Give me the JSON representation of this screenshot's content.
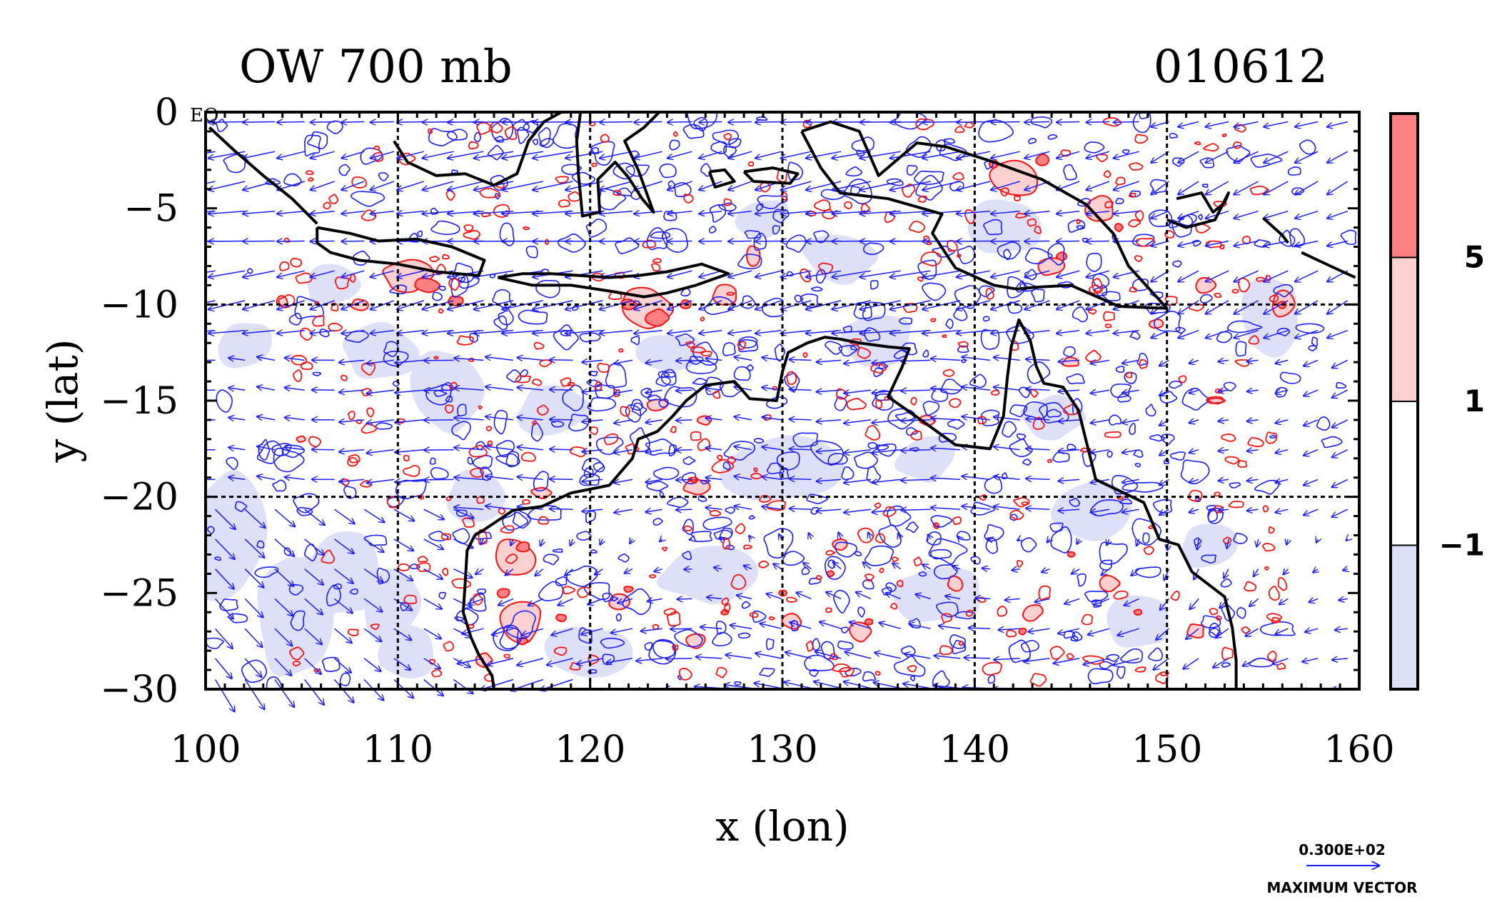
{
  "chart_data": {
    "type": "heatmap",
    "title_left": "OW 700 mb",
    "title_right": "010612",
    "xlabel": "x (lon)",
    "ylabel": "y (lat)",
    "corner_label": "EQ",
    "xlim": [
      100,
      160
    ],
    "ylim": [
      -30,
      0
    ],
    "x_ticks": [
      100,
      110,
      120,
      130,
      140,
      150,
      160
    ],
    "y_ticks": [
      0,
      -5,
      -10,
      -15,
      -20,
      -25,
      -30
    ],
    "x_tick_labels": [
      "100",
      "110",
      "120",
      "130",
      "140",
      "150",
      "160"
    ],
    "y_tick_labels": [
      "0",
      "−5",
      "−10",
      "−15",
      "−20",
      "−25",
      "−30"
    ],
    "grid_lon": [
      110,
      120,
      130,
      140,
      150
    ],
    "grid_lat": [
      -10,
      -20
    ],
    "grid": true,
    "colorbar": {
      "levels_labels": [
        "5",
        "1",
        "−1"
      ],
      "bands": [
        {
          "range": "> 5",
          "color": "#ff8080"
        },
        {
          "range": "1 to 5",
          "color": "#ffd0d0"
        },
        {
          "range": "-1 to 1",
          "color": "#ffffff"
        },
        {
          "range": "< -1",
          "color": "#dde0f8"
        }
      ]
    },
    "vector_key": {
      "value_label": "0.300E+02",
      "caption": "MAXIMUM VECTOR"
    },
    "colors": {
      "positive_contour": "#ff1010",
      "negative_contour": "#1a1aff",
      "vectors": "#1a1aff",
      "coastline": "#000000",
      "fill_strong": "#ff8080",
      "fill_weak": "#ffd0d0",
      "fill_negative": "#dde0f8"
    },
    "coastlines": [
      [
        [
          100.2,
          -0.8
        ],
        [
          101.5,
          -2.0
        ],
        [
          103.0,
          -3.3
        ],
        [
          104.5,
          -4.5
        ],
        [
          105.8,
          -5.8
        ]
      ],
      [
        [
          105.8,
          -6.0
        ],
        [
          107.5,
          -6.3
        ],
        [
          109.0,
          -6.7
        ],
        [
          111.0,
          -6.6
        ],
        [
          112.8,
          -7.0
        ],
        [
          114.5,
          -7.7
        ],
        [
          114.2,
          -8.5
        ],
        [
          112.0,
          -8.3
        ],
        [
          110.0,
          -7.9
        ],
        [
          108.0,
          -7.7
        ],
        [
          106.5,
          -7.3
        ],
        [
          105.8,
          -6.8
        ],
        [
          105.8,
          -6.0
        ]
      ],
      [
        [
          115.2,
          -8.6
        ],
        [
          116.5,
          -8.4
        ],
        [
          118.0,
          -8.4
        ],
        [
          119.5,
          -8.5
        ],
        [
          121.0,
          -8.6
        ],
        [
          122.5,
          -8.5
        ],
        [
          124.0,
          -8.3
        ],
        [
          125.8,
          -7.9
        ],
        [
          127.2,
          -8.4
        ],
        [
          125.5,
          -9.0
        ],
        [
          124.0,
          -9.4
        ],
        [
          122.8,
          -9.6
        ],
        [
          121.0,
          -9.3
        ],
        [
          119.0,
          -9.0
        ],
        [
          117.0,
          -9.0
        ],
        [
          115.2,
          -8.6
        ]
      ],
      [
        [
          109.8,
          -1.5
        ],
        [
          110.5,
          -2.6
        ],
        [
          112.0,
          -3.3
        ],
        [
          113.5,
          -3.2
        ],
        [
          115.0,
          -3.8
        ],
        [
          116.2,
          -3.2
        ],
        [
          116.8,
          -1.5
        ],
        [
          117.6,
          -0.5
        ],
        [
          118.5,
          0.0
        ]
      ],
      [
        [
          119.5,
          0.0
        ],
        [
          119.3,
          -1.5
        ],
        [
          119.4,
          -3.3
        ],
        [
          119.6,
          -5.4
        ],
        [
          120.5,
          -5.2
        ],
        [
          120.4,
          -3.5
        ],
        [
          121.3,
          -2.6
        ],
        [
          122.0,
          -3.4
        ],
        [
          122.7,
          -4.5
        ],
        [
          123.3,
          -5.2
        ],
        [
          122.5,
          -3.0
        ],
        [
          121.8,
          -1.5
        ],
        [
          122.8,
          -0.8
        ],
        [
          123.6,
          0.0
        ]
      ],
      [
        [
          126.2,
          -3.1
        ],
        [
          127.0,
          -3.0
        ],
        [
          127.5,
          -3.6
        ],
        [
          126.5,
          -3.9
        ],
        [
          126.2,
          -3.1
        ]
      ],
      [
        [
          128.0,
          -3.1
        ],
        [
          129.5,
          -2.9
        ],
        [
          130.8,
          -3.2
        ],
        [
          130.4,
          -3.7
        ],
        [
          128.5,
          -3.6
        ],
        [
          128.0,
          -3.1
        ]
      ],
      [
        [
          131.0,
          -1.0
        ],
        [
          132.5,
          -0.5
        ],
        [
          134.0,
          -1.0
        ],
        [
          135.0,
          -3.3
        ],
        [
          137.0,
          -1.6
        ],
        [
          138.5,
          -1.8
        ],
        [
          141.0,
          -2.6
        ],
        [
          143.5,
          -3.5
        ],
        [
          145.8,
          -4.8
        ],
        [
          147.2,
          -6.3
        ],
        [
          148.0,
          -8.0
        ],
        [
          150.0,
          -10.2
        ],
        [
          147.5,
          -10.1
        ],
        [
          145.0,
          -9.0
        ],
        [
          143.2,
          -9.1
        ],
        [
          142.2,
          -9.2
        ],
        [
          141.0,
          -9.0
        ],
        [
          139.0,
          -8.1
        ],
        [
          137.8,
          -6.3
        ],
        [
          138.3,
          -5.3
        ],
        [
          135.5,
          -4.5
        ],
        [
          133.0,
          -4.2
        ],
        [
          132.0,
          -2.9
        ],
        [
          131.0,
          -1.0
        ]
      ],
      [
        [
          150.5,
          -4.5
        ],
        [
          151.8,
          -4.2
        ],
        [
          152.4,
          -5.2
        ],
        [
          153.0,
          -4.7
        ],
        [
          153.2,
          -4.2
        ],
        [
          152.5,
          -5.6
        ],
        [
          151.0,
          -6.0
        ],
        [
          150.0,
          -5.6
        ]
      ],
      [
        [
          155.0,
          -5.5
        ],
        [
          156.0,
          -6.4
        ],
        [
          156.3,
          -6.8
        ]
      ],
      [
        [
          157.0,
          -7.3
        ],
        [
          158.5,
          -8.0
        ],
        [
          159.8,
          -8.6
        ]
      ],
      [
        [
          114.0,
          -22.0
        ],
        [
          114.5,
          -21.7
        ],
        [
          116.0,
          -20.7
        ],
        [
          117.5,
          -20.5
        ],
        [
          119.0,
          -19.8
        ],
        [
          121.0,
          -19.4
        ],
        [
          122.2,
          -18.0
        ],
        [
          122.5,
          -17.0
        ],
        [
          123.5,
          -16.6
        ],
        [
          124.3,
          -15.8
        ],
        [
          125.0,
          -15.0
        ],
        [
          126.0,
          -14.2
        ],
        [
          127.5,
          -14.0
        ],
        [
          128.3,
          -14.9
        ],
        [
          129.7,
          -15.0
        ],
        [
          130.0,
          -13.5
        ],
        [
          130.3,
          -12.5
        ],
        [
          131.3,
          -12.0
        ],
        [
          132.2,
          -11.7
        ],
        [
          133.0,
          -11.8
        ],
        [
          134.0,
          -12.0
        ],
        [
          135.5,
          -12.2
        ],
        [
          136.6,
          -12.3
        ],
        [
          136.2,
          -13.3
        ],
        [
          135.5,
          -14.8
        ],
        [
          137.2,
          -16.0
        ],
        [
          139.0,
          -17.3
        ],
        [
          140.8,
          -17.5
        ],
        [
          141.5,
          -15.8
        ],
        [
          141.7,
          -13.8
        ],
        [
          141.9,
          -12.2
        ],
        [
          142.3,
          -10.8
        ],
        [
          142.9,
          -11.9
        ],
        [
          143.2,
          -13.2
        ],
        [
          143.6,
          -14.1
        ],
        [
          144.6,
          -14.3
        ],
        [
          145.4,
          -15.5
        ],
        [
          145.9,
          -17.5
        ],
        [
          146.3,
          -19.1
        ],
        [
          148.8,
          -20.3
        ],
        [
          149.6,
          -22.2
        ],
        [
          150.6,
          -22.5
        ],
        [
          151.3,
          -23.9
        ],
        [
          153.0,
          -25.2
        ],
        [
          153.4,
          -26.8
        ],
        [
          153.6,
          -28.5
        ],
        [
          153.6,
          -30.0
        ]
      ],
      [
        [
          114.0,
          -22.0
        ],
        [
          113.6,
          -22.8
        ],
        [
          113.5,
          -24.5
        ],
        [
          113.4,
          -26.0
        ],
        [
          113.8,
          -27.3
        ],
        [
          114.2,
          -28.2
        ],
        [
          114.9,
          -29.3
        ],
        [
          115.0,
          -30.0
        ]
      ]
    ],
    "strong_positive_cells": [
      [
        111.5,
        -9.0,
        1.4,
        0.8
      ],
      [
        113.0,
        -9.8,
        0.8,
        0.5
      ],
      [
        123.5,
        -10.7,
        1.2,
        0.9
      ],
      [
        122.0,
        -10.0,
        0.8,
        0.5
      ],
      [
        125.0,
        -10.0,
        0.6,
        0.5
      ],
      [
        143.5,
        -2.5,
        0.7,
        0.6
      ],
      [
        141.0,
        -2.7,
        0.5,
        0.4
      ],
      [
        144.5,
        -7.5,
        0.5,
        0.4
      ],
      [
        147.5,
        -6.0,
        0.4,
        0.4
      ],
      [
        116.5,
        -22.6,
        0.7,
        0.5
      ],
      [
        115.5,
        -25.0,
        0.6,
        0.5
      ],
      [
        118.5,
        -26.3,
        0.5,
        0.4
      ],
      [
        116.5,
        -27.5,
        0.5,
        0.4
      ],
      [
        122.0,
        -24.8,
        0.5,
        0.3
      ],
      [
        130.0,
        -25.0,
        0.4,
        0.3
      ],
      [
        134.5,
        -26.5,
        0.4,
        0.3
      ],
      [
        145.0,
        -23.0,
        0.4,
        0.3
      ],
      [
        148.5,
        -26.0,
        0.4,
        0.3
      ],
      [
        142.5,
        -27.0,
        0.4,
        0.3
      ],
      [
        156.0,
        -10.0,
        0.4,
        0.4
      ],
      [
        132.5,
        -24.0,
        0.4,
        0.3
      ],
      [
        127.0,
        -26.0,
        0.4,
        0.3
      ],
      [
        138.0,
        -21.5,
        0.3,
        0.3
      ]
    ],
    "weak_positive_cells": [
      [
        110.5,
        -8.5,
        2.8,
        1.6
      ],
      [
        122.8,
        -10.2,
        2.8,
        2.0
      ],
      [
        127.0,
        -9.5,
        1.3,
        1.0
      ],
      [
        128.5,
        -7.5,
        0.8,
        1.3
      ],
      [
        142.0,
        -3.5,
        2.5,
        2.0
      ],
      [
        146.5,
        -5.0,
        1.6,
        1.4
      ],
      [
        144.0,
        -8.0,
        1.3,
        1.0
      ],
      [
        152.0,
        -9.0,
        1.0,
        0.8
      ],
      [
        116.0,
        -23.2,
        2.3,
        2.0
      ],
      [
        116.5,
        -26.5,
        2.2,
        2.0
      ],
      [
        125.5,
        -19.5,
        1.3,
        0.8
      ],
      [
        117.5,
        -19.8,
        1.1,
        0.6
      ],
      [
        123.5,
        -15.2,
        1.0,
        0.6
      ],
      [
        126.0,
        -16.0,
        0.8,
        0.5
      ],
      [
        137.5,
        -16.0,
        0.9,
        0.6
      ],
      [
        145.0,
        -13.0,
        0.9,
        0.5
      ],
      [
        149.5,
        -11.0,
        0.8,
        0.5
      ],
      [
        147.0,
        -24.5,
        1.1,
        1.0
      ],
      [
        143.0,
        -26.0,
        1.0,
        0.9
      ],
      [
        134.0,
        -27.0,
        1.2,
        1.0
      ],
      [
        130.5,
        -26.5,
        1.0,
        0.8
      ],
      [
        125.5,
        -27.5,
        1.0,
        0.8
      ],
      [
        121.5,
        -25.5,
        1.0,
        0.8
      ],
      [
        139.0,
        -24.5,
        0.9,
        0.8
      ],
      [
        151.5,
        -27.0,
        0.9,
        0.8
      ],
      [
        133.0,
        -22.5,
        0.8,
        0.6
      ],
      [
        108.0,
        -10.0,
        0.9,
        0.6
      ],
      [
        104.0,
        -9.8,
        0.6,
        0.5
      ],
      [
        156.0,
        -10.0,
        1.2,
        1.6
      ],
      [
        152.5,
        -15.0,
        1.0,
        0.3
      ],
      [
        105.0,
        -17.0,
        0.5,
        0.3
      ],
      [
        114.5,
        -28.5,
        0.8,
        0.8
      ]
    ],
    "negative_regions": [
      [
        101.0,
        -22.0,
        2.2,
        3.2
      ],
      [
        104.5,
        -26.0,
        2.0,
        3.5
      ],
      [
        107.0,
        -24.0,
        1.8,
        2.5
      ],
      [
        109.5,
        -25.5,
        1.6,
        2.0
      ],
      [
        112.5,
        -14.5,
        1.8,
        2.2
      ],
      [
        109.0,
        -12.5,
        2.0,
        1.6
      ],
      [
        102.0,
        -12.0,
        1.6,
        1.3
      ],
      [
        135.0,
        -12.0,
        2.0,
        1.5
      ],
      [
        141.5,
        -6.0,
        2.0,
        1.6
      ],
      [
        118.0,
        -15.5,
        2.0,
        1.3
      ],
      [
        130.0,
        -18.5,
        3.0,
        1.8
      ],
      [
        126.0,
        -24.0,
        2.5,
        1.6
      ],
      [
        138.0,
        -25.0,
        2.5,
        1.6
      ],
      [
        146.0,
        -20.5,
        2.0,
        1.6
      ],
      [
        120.0,
        -28.0,
        2.2,
        1.4
      ],
      [
        110.5,
        -28.0,
        1.6,
        1.6
      ],
      [
        155.5,
        -10.5,
        1.6,
        2.0
      ],
      [
        133.0,
        -7.5,
        2.2,
        1.4
      ],
      [
        129.0,
        -5.5,
        1.5,
        1.0
      ],
      [
        137.5,
        -18.0,
        1.6,
        1.2
      ],
      [
        148.5,
        -26.5,
        1.8,
        1.4
      ],
      [
        106.5,
        -9.0,
        1.6,
        1.2
      ],
      [
        124.0,
        -12.5,
        1.8,
        1.0
      ],
      [
        152.0,
        -22.5,
        1.5,
        1.2
      ],
      [
        144.0,
        -16.0,
        1.6,
        1.2
      ],
      [
        114.0,
        -20.0,
        1.4,
        1.4
      ]
    ]
  }
}
